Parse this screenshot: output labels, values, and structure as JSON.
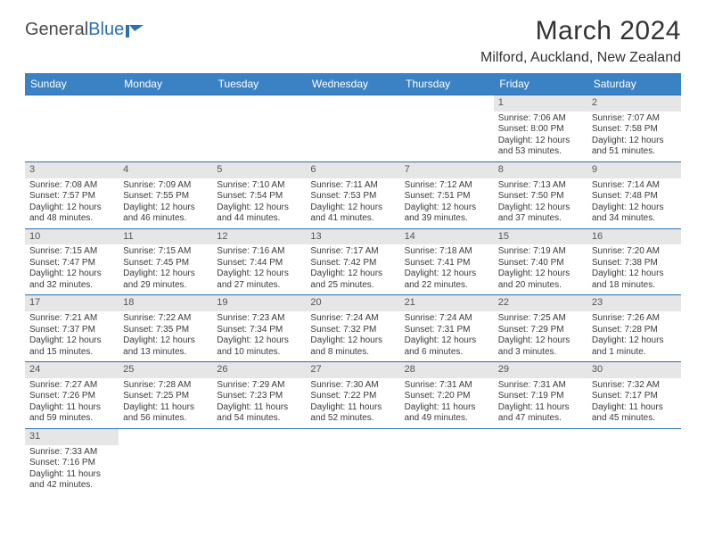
{
  "brand": {
    "part1": "General",
    "part2": "Blue"
  },
  "title": "March 2024",
  "location": "Milford, Auckland, New Zealand",
  "header_bg": "#3b82c4",
  "border_color": "#2d6fb5",
  "daynum_bg": "#e6e6e6",
  "weekdays": [
    "Sunday",
    "Monday",
    "Tuesday",
    "Wednesday",
    "Thursday",
    "Friday",
    "Saturday"
  ],
  "cells": [
    {
      "n": "",
      "sr": "",
      "ss": "",
      "d1": "",
      "d2": ""
    },
    {
      "n": "",
      "sr": "",
      "ss": "",
      "d1": "",
      "d2": ""
    },
    {
      "n": "",
      "sr": "",
      "ss": "",
      "d1": "",
      "d2": ""
    },
    {
      "n": "",
      "sr": "",
      "ss": "",
      "d1": "",
      "d2": ""
    },
    {
      "n": "",
      "sr": "",
      "ss": "",
      "d1": "",
      "d2": ""
    },
    {
      "n": "1",
      "sr": "Sunrise: 7:06 AM",
      "ss": "Sunset: 8:00 PM",
      "d1": "Daylight: 12 hours",
      "d2": "and 53 minutes."
    },
    {
      "n": "2",
      "sr": "Sunrise: 7:07 AM",
      "ss": "Sunset: 7:58 PM",
      "d1": "Daylight: 12 hours",
      "d2": "and 51 minutes."
    },
    {
      "n": "3",
      "sr": "Sunrise: 7:08 AM",
      "ss": "Sunset: 7:57 PM",
      "d1": "Daylight: 12 hours",
      "d2": "and 48 minutes."
    },
    {
      "n": "4",
      "sr": "Sunrise: 7:09 AM",
      "ss": "Sunset: 7:55 PM",
      "d1": "Daylight: 12 hours",
      "d2": "and 46 minutes."
    },
    {
      "n": "5",
      "sr": "Sunrise: 7:10 AM",
      "ss": "Sunset: 7:54 PM",
      "d1": "Daylight: 12 hours",
      "d2": "and 44 minutes."
    },
    {
      "n": "6",
      "sr": "Sunrise: 7:11 AM",
      "ss": "Sunset: 7:53 PM",
      "d1": "Daylight: 12 hours",
      "d2": "and 41 minutes."
    },
    {
      "n": "7",
      "sr": "Sunrise: 7:12 AM",
      "ss": "Sunset: 7:51 PM",
      "d1": "Daylight: 12 hours",
      "d2": "and 39 minutes."
    },
    {
      "n": "8",
      "sr": "Sunrise: 7:13 AM",
      "ss": "Sunset: 7:50 PM",
      "d1": "Daylight: 12 hours",
      "d2": "and 37 minutes."
    },
    {
      "n": "9",
      "sr": "Sunrise: 7:14 AM",
      "ss": "Sunset: 7:48 PM",
      "d1": "Daylight: 12 hours",
      "d2": "and 34 minutes."
    },
    {
      "n": "10",
      "sr": "Sunrise: 7:15 AM",
      "ss": "Sunset: 7:47 PM",
      "d1": "Daylight: 12 hours",
      "d2": "and 32 minutes."
    },
    {
      "n": "11",
      "sr": "Sunrise: 7:15 AM",
      "ss": "Sunset: 7:45 PM",
      "d1": "Daylight: 12 hours",
      "d2": "and 29 minutes."
    },
    {
      "n": "12",
      "sr": "Sunrise: 7:16 AM",
      "ss": "Sunset: 7:44 PM",
      "d1": "Daylight: 12 hours",
      "d2": "and 27 minutes."
    },
    {
      "n": "13",
      "sr": "Sunrise: 7:17 AM",
      "ss": "Sunset: 7:42 PM",
      "d1": "Daylight: 12 hours",
      "d2": "and 25 minutes."
    },
    {
      "n": "14",
      "sr": "Sunrise: 7:18 AM",
      "ss": "Sunset: 7:41 PM",
      "d1": "Daylight: 12 hours",
      "d2": "and 22 minutes."
    },
    {
      "n": "15",
      "sr": "Sunrise: 7:19 AM",
      "ss": "Sunset: 7:40 PM",
      "d1": "Daylight: 12 hours",
      "d2": "and 20 minutes."
    },
    {
      "n": "16",
      "sr": "Sunrise: 7:20 AM",
      "ss": "Sunset: 7:38 PM",
      "d1": "Daylight: 12 hours",
      "d2": "and 18 minutes."
    },
    {
      "n": "17",
      "sr": "Sunrise: 7:21 AM",
      "ss": "Sunset: 7:37 PM",
      "d1": "Daylight: 12 hours",
      "d2": "and 15 minutes."
    },
    {
      "n": "18",
      "sr": "Sunrise: 7:22 AM",
      "ss": "Sunset: 7:35 PM",
      "d1": "Daylight: 12 hours",
      "d2": "and 13 minutes."
    },
    {
      "n": "19",
      "sr": "Sunrise: 7:23 AM",
      "ss": "Sunset: 7:34 PM",
      "d1": "Daylight: 12 hours",
      "d2": "and 10 minutes."
    },
    {
      "n": "20",
      "sr": "Sunrise: 7:24 AM",
      "ss": "Sunset: 7:32 PM",
      "d1": "Daylight: 12 hours",
      "d2": "and 8 minutes."
    },
    {
      "n": "21",
      "sr": "Sunrise: 7:24 AM",
      "ss": "Sunset: 7:31 PM",
      "d1": "Daylight: 12 hours",
      "d2": "and 6 minutes."
    },
    {
      "n": "22",
      "sr": "Sunrise: 7:25 AM",
      "ss": "Sunset: 7:29 PM",
      "d1": "Daylight: 12 hours",
      "d2": "and 3 minutes."
    },
    {
      "n": "23",
      "sr": "Sunrise: 7:26 AM",
      "ss": "Sunset: 7:28 PM",
      "d1": "Daylight: 12 hours",
      "d2": "and 1 minute."
    },
    {
      "n": "24",
      "sr": "Sunrise: 7:27 AM",
      "ss": "Sunset: 7:26 PM",
      "d1": "Daylight: 11 hours",
      "d2": "and 59 minutes."
    },
    {
      "n": "25",
      "sr": "Sunrise: 7:28 AM",
      "ss": "Sunset: 7:25 PM",
      "d1": "Daylight: 11 hours",
      "d2": "and 56 minutes."
    },
    {
      "n": "26",
      "sr": "Sunrise: 7:29 AM",
      "ss": "Sunset: 7:23 PM",
      "d1": "Daylight: 11 hours",
      "d2": "and 54 minutes."
    },
    {
      "n": "27",
      "sr": "Sunrise: 7:30 AM",
      "ss": "Sunset: 7:22 PM",
      "d1": "Daylight: 11 hours",
      "d2": "and 52 minutes."
    },
    {
      "n": "28",
      "sr": "Sunrise: 7:31 AM",
      "ss": "Sunset: 7:20 PM",
      "d1": "Daylight: 11 hours",
      "d2": "and 49 minutes."
    },
    {
      "n": "29",
      "sr": "Sunrise: 7:31 AM",
      "ss": "Sunset: 7:19 PM",
      "d1": "Daylight: 11 hours",
      "d2": "and 47 minutes."
    },
    {
      "n": "30",
      "sr": "Sunrise: 7:32 AM",
      "ss": "Sunset: 7:17 PM",
      "d1": "Daylight: 11 hours",
      "d2": "and 45 minutes."
    },
    {
      "n": "31",
      "sr": "Sunrise: 7:33 AM",
      "ss": "Sunset: 7:16 PM",
      "d1": "Daylight: 11 hours",
      "d2": "and 42 minutes."
    },
    {
      "n": "",
      "sr": "",
      "ss": "",
      "d1": "",
      "d2": ""
    },
    {
      "n": "",
      "sr": "",
      "ss": "",
      "d1": "",
      "d2": ""
    },
    {
      "n": "",
      "sr": "",
      "ss": "",
      "d1": "",
      "d2": ""
    },
    {
      "n": "",
      "sr": "",
      "ss": "",
      "d1": "",
      "d2": ""
    },
    {
      "n": "",
      "sr": "",
      "ss": "",
      "d1": "",
      "d2": ""
    },
    {
      "n": "",
      "sr": "",
      "ss": "",
      "d1": "",
      "d2": ""
    }
  ]
}
